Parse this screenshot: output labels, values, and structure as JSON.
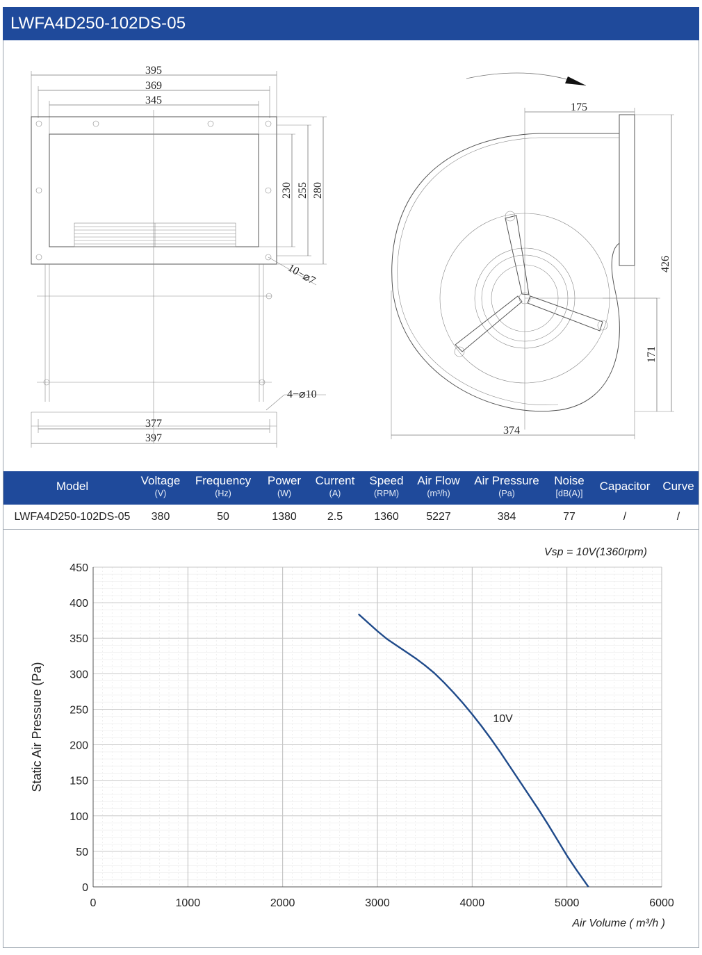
{
  "title": "LWFA4D250-102DS-05",
  "drawing": {
    "front_view": {
      "dims_top": [
        "395",
        "369",
        "345"
      ],
      "dims_right": [
        "230",
        "255",
        "280"
      ],
      "dims_bottom": [
        "377",
        "397"
      ],
      "hole_note_top": "10−⌀7",
      "hole_note_bottom": "4−⌀10"
    },
    "side_view": {
      "dim_top": "175",
      "dim_right_tall": "426",
      "dim_right_short": "171",
      "dim_bottom": "374"
    }
  },
  "spec_table": {
    "headers": [
      {
        "label": "Model",
        "unit": ""
      },
      {
        "label": "Voltage",
        "unit": "(V)"
      },
      {
        "label": "Frequency",
        "unit": "(Hz)"
      },
      {
        "label": "Power",
        "unit": "(W)"
      },
      {
        "label": "Current",
        "unit": "(A)"
      },
      {
        "label": "Speed",
        "unit": "(RPM)"
      },
      {
        "label": "Air Flow",
        "unit": "(m³/h)"
      },
      {
        "label": "Air Pressure",
        "unit": "(Pa)"
      },
      {
        "label": "Noise",
        "unit": "[dB(A)]"
      },
      {
        "label": "Capacitor",
        "unit": ""
      },
      {
        "label": "Curve",
        "unit": ""
      }
    ],
    "row": [
      "LWFA4D250-102DS-05",
      "380",
      "50",
      "1380",
      "2.5",
      "1360",
      "5227",
      "384",
      "77",
      "/",
      "/"
    ]
  },
  "colors": {
    "header_blue": "#1f4a9b",
    "curve_blue": "#1f4a8a",
    "grid": "#c8c8c8"
  },
  "chart_data": {
    "type": "line",
    "annotation": "Vsp = 10V(1360rpm)",
    "xlabel": "Air Volume ( m³/h )",
    "ylabel": "Static Air Pressure  (Pa)",
    "xlim": [
      0,
      6000
    ],
    "ylim": [
      0,
      450
    ],
    "xticks": [
      0,
      1000,
      2000,
      3000,
      4000,
      5000,
      6000
    ],
    "yticks": [
      0,
      50,
      100,
      150,
      200,
      250,
      300,
      350,
      400,
      450
    ],
    "grid": true,
    "series": [
      {
        "name": "10V",
        "x": [
          2800,
          2900,
          3000,
          3100,
          3200,
          3300,
          3400,
          3500,
          3600,
          3700,
          3800,
          3900,
          4000,
          4100,
          4200,
          4300,
          4400,
          4500,
          4600,
          4700,
          4800,
          4900,
          5000,
          5100,
          5227
        ],
        "y": [
          384,
          372,
          360,
          349,
          340,
          331,
          322,
          312,
          301,
          288,
          274,
          259,
          243,
          226,
          208,
          189,
          169,
          149,
          129,
          109,
          88,
          66,
          44,
          24,
          0
        ]
      }
    ]
  }
}
